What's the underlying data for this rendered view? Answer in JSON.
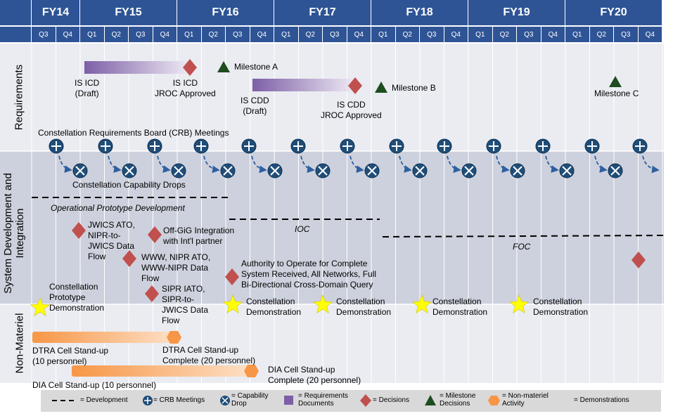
{
  "fiscal_years": [
    "FY14",
    "FY15",
    "FY16",
    "FY17",
    "FY18",
    "FY19",
    "FY20"
  ],
  "quarters": [
    "Q3",
    "Q4",
    "Q1",
    "Q2",
    "Q3",
    "Q4",
    "Q1",
    "Q2",
    "Q3",
    "Q4",
    "Q1",
    "Q2",
    "Q3",
    "Q4",
    "Q1",
    "Q2",
    "Q3",
    "Q4",
    "Q1",
    "Q2",
    "Q3",
    "Q4",
    "Q1",
    "Q2",
    "Q3",
    "Q4"
  ],
  "lanes": {
    "requirements": "Requirements",
    "sdi_line1": "System Development and",
    "sdi_line2": "Integration",
    "non_materiel": "Non-Materiel"
  },
  "requirements": {
    "is_icd_draft": "IS ICD\n(Draft)",
    "is_icd_jroc": "IS ICD\nJROC Approved",
    "milestone_a": "Milestone A",
    "is_cdd_draft": "IS CDD\n(Draft)",
    "is_cdd_jroc": "IS CDD\nJROC Approved",
    "milestone_b": "Milestone B",
    "milestone_c": "Milestone C",
    "crb_meetings": "Constellation Requirements Board (CRB) Meetings"
  },
  "sdi": {
    "capability_drops": "Constellation Capability Drops",
    "operational_prototype": "Operational Prototype Development",
    "ioc": "IOC",
    "foc": "FOC",
    "jwics_ato": "JWICS ATO,\nNIPR-to-\nJWICS Data\nFlow",
    "off_gig": "Off-GiG Integration\nwith Int'l partner",
    "www_nipr": "WWW, NIPR ATO,\nWWW-NIPR Data\nFlow",
    "sipr_iato": "SIPR IATO,\nSIPR-to-\nJWICS Data\nFlow",
    "ato_complete": "Authority to Operate for Complete\nSystem Received, All Networks, Full\nBi-Directional Cross-Domain Query",
    "prototype_demo": "Constellation\nPrototype\nDemonstration",
    "demo_1": "Constellation\nDemonstration",
    "demo_2": "Constellation\nDemonstration",
    "demo_3": "Constellation\nDemonstration",
    "demo_4": "Constellation\nDemonstration"
  },
  "non_materiel": {
    "dtra_standup": "DTRA Cell Stand-up\n(10 personnel)",
    "dtra_complete": "DTRA Cell Stand-up\nComplete (20 personnel)",
    "dia_complete": "DIA Cell Stand-up\nComplete (20 personnel)",
    "dia_standup": "DIA Cell Stand-up  (10 personnel)"
  },
  "legend": {
    "development": "= Development",
    "crb": "= CRB Meetings",
    "capability_drop": "= Capability\nDrop",
    "requirements_docs": "= Requirements\nDocuments",
    "decisions": "= Decisions",
    "milestone_decisions": "= Milestone\nDecisions",
    "non_materiel_activity": "= Non-materiel\nActivity",
    "demonstrations": "= Demonstrations"
  },
  "colors": {
    "header_blue": "#2f5496",
    "lane_light": "#eaecf1",
    "lane_dark": "#cdd1dd",
    "decision_red": "#c0504d",
    "milestone_green": "#1e4d1e",
    "star_yellow": "#ffff00",
    "crb_blue": "#1f4e79",
    "bar_orange": "#f79646"
  }
}
